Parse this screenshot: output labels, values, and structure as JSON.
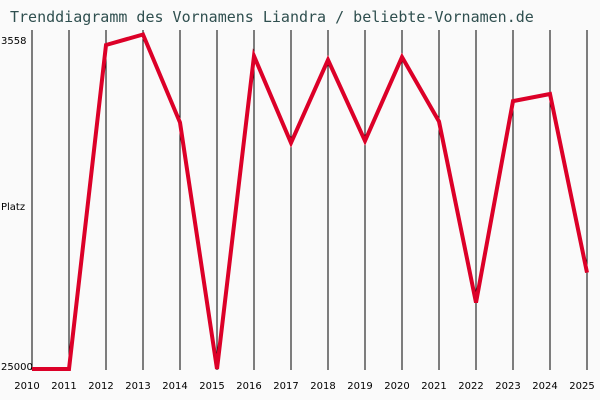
{
  "title": "Trenddiagramm des Vornamens Liandra / beliebte-Vornamen.de",
  "y_axis": {
    "top_label": "3558",
    "mid_label": "Platz",
    "bottom_label": "25000"
  },
  "colors": {
    "line": "#dc0028",
    "grid": "#000000",
    "title": "#2f4f4f",
    "background": "#fafafa"
  },
  "chart_data": {
    "type": "line",
    "title": "Trenddiagramm des Vornamens Liandra / beliebte-Vornamen.de",
    "xlabel": "",
    "ylabel": "Platz",
    "y_inverted": true,
    "ylim": [
      25000,
      3558
    ],
    "grid": {
      "vertical": true,
      "horizontal": false
    },
    "categories": [
      "2010",
      "2011",
      "2012",
      "2013",
      "2014",
      "2015",
      "2016",
      "2017",
      "2018",
      "2019",
      "2020",
      "2021",
      "2022",
      "2023",
      "2024",
      "2025"
    ],
    "series": [
      {
        "name": "Liandra",
        "values": [
          25000,
          25000,
          3690,
          3000,
          8790,
          25000,
          4410,
          10130,
          4670,
          10000,
          4480,
          8720,
          20630,
          7380,
          6910,
          18660
        ]
      }
    ]
  }
}
